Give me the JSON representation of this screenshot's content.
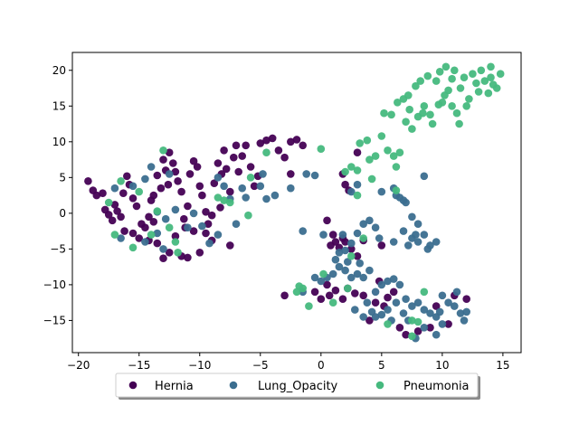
{
  "chart_data": {
    "type": "scatter",
    "title": "",
    "xlabel": "",
    "ylabel": "",
    "xlim": [
      -20.5,
      16.5
    ],
    "ylim": [
      -19.5,
      22.5
    ],
    "xticks": [
      -20,
      -15,
      -10,
      -5,
      0,
      5,
      10,
      15
    ],
    "yticks": [
      -15,
      -10,
      -5,
      0,
      5,
      10,
      15,
      20
    ],
    "grid": false,
    "legend_placement": "below plot, center",
    "series": [
      {
        "name": "Hernia",
        "color": "#440154",
        "points": [
          [
            -19.2,
            4.5
          ],
          [
            -18.8,
            3.2
          ],
          [
            -18.5,
            2.5
          ],
          [
            -18.0,
            2.8
          ],
          [
            -17.8,
            0.5
          ],
          [
            -17.5,
            -0.2
          ],
          [
            -17.0,
            1.2
          ],
          [
            -16.8,
            0.3
          ],
          [
            -16.5,
            -0.5
          ],
          [
            -16.3,
            2.8
          ],
          [
            -16.0,
            5.2
          ],
          [
            -15.8,
            4.0
          ],
          [
            -15.5,
            2.1
          ],
          [
            -15.2,
            1.0
          ],
          [
            -15.0,
            -3.5
          ],
          [
            -14.5,
            -2.0
          ],
          [
            -14.2,
            -0.5
          ],
          [
            -14.0,
            1.8
          ],
          [
            -13.8,
            -1.2
          ],
          [
            -13.5,
            5.3
          ],
          [
            -13.2,
            3.5
          ],
          [
            -13.0,
            7.5
          ],
          [
            -12.8,
            6.0
          ],
          [
            -12.5,
            8.5
          ],
          [
            -12.2,
            7.0
          ],
          [
            -12.0,
            5.8
          ],
          [
            -11.8,
            4.5
          ],
          [
            -11.5,
            3.0
          ],
          [
            -11.3,
            -0.8
          ],
          [
            -11.0,
            1.0
          ],
          [
            -10.8,
            5.5
          ],
          [
            -10.5,
            7.3
          ],
          [
            -10.2,
            6.5
          ],
          [
            -10.0,
            3.8
          ],
          [
            -9.8,
            2.5
          ],
          [
            -9.5,
            0.2
          ],
          [
            -9.3,
            -1.5
          ],
          [
            -9.0,
            -3.8
          ],
          [
            -8.8,
            4.2
          ],
          [
            -8.5,
            7.0
          ],
          [
            -8.2,
            5.5
          ],
          [
            -8.0,
            8.8
          ],
          [
            -7.8,
            6.2
          ],
          [
            -7.5,
            3.0
          ],
          [
            -7.2,
            7.8
          ],
          [
            -7.0,
            9.5
          ],
          [
            -6.8,
            5.8
          ],
          [
            -6.5,
            8.0
          ],
          [
            -6.2,
            9.5
          ],
          [
            -5.8,
            6.5
          ],
          [
            -5.5,
            3.8
          ],
          [
            -5.2,
            5.2
          ],
          [
            -5.0,
            9.8
          ],
          [
            -4.5,
            10.2
          ],
          [
            -4.0,
            10.5
          ],
          [
            -3.5,
            8.8
          ],
          [
            -3.0,
            7.8
          ],
          [
            -2.5,
            10.0
          ],
          [
            -2.0,
            10.3
          ],
          [
            -1.5,
            9.5
          ],
          [
            -15.5,
            -2.8
          ],
          [
            -14.8,
            -1.5
          ],
          [
            -14.2,
            -3.8
          ],
          [
            -13.5,
            -4.2
          ],
          [
            -13.0,
            -6.3
          ],
          [
            -12.5,
            -5.5
          ],
          [
            -12.0,
            -3.2
          ],
          [
            -11.5,
            -6.0
          ],
          [
            -11.0,
            -6.2
          ],
          [
            -10.5,
            -2.5
          ],
          [
            -10.0,
            -5.5
          ],
          [
            -9.5,
            -2.8
          ],
          [
            -7.5,
            -4.5
          ],
          [
            -17.2,
            -1.0
          ],
          [
            -16.2,
            -2.5
          ],
          [
            -12.6,
            4.0
          ],
          [
            -13.8,
            2.5
          ],
          [
            -11.2,
            -2.0
          ],
          [
            -9.0,
            -0.3
          ],
          [
            -8.3,
            0.8
          ],
          [
            -3.0,
            -11.5
          ],
          [
            -2.5,
            5.5
          ],
          [
            0.5,
            -1.0
          ],
          [
            0.8,
            -4.5
          ],
          [
            1.0,
            -3.0
          ],
          [
            1.2,
            -4.0
          ],
          [
            1.5,
            -4.8
          ],
          [
            1.8,
            -3.5
          ],
          [
            2.0,
            -4.0
          ],
          [
            2.5,
            -5.0
          ],
          [
            3.0,
            8.5
          ],
          [
            3.5,
            -3.8
          ],
          [
            2.0,
            4.0
          ],
          [
            2.3,
            3.2
          ],
          [
            1.8,
            5.5
          ],
          [
            0.5,
            -10.0
          ],
          [
            0.7,
            -11.5
          ],
          [
            1.2,
            -10.8
          ],
          [
            1.8,
            -12.0
          ],
          [
            2.2,
            -10.5
          ],
          [
            2.8,
            -11.2
          ],
          [
            3.5,
            -11.5
          ],
          [
            4.5,
            -12.5
          ],
          [
            5.5,
            -11.8
          ],
          [
            6.5,
            -16.0
          ],
          [
            7.0,
            -17.0
          ],
          [
            8.0,
            -16.5
          ],
          [
            9.0,
            -16.0
          ],
          [
            10.5,
            -15.5
          ],
          [
            11.0,
            -11.5
          ],
          [
            0.0,
            -12.0
          ],
          [
            -0.5,
            -11.0
          ],
          [
            6.0,
            -11.0
          ],
          [
            5.2,
            -13.0
          ],
          [
            4.8,
            -9.5
          ],
          [
            9.5,
            -13.0
          ],
          [
            12.0,
            -12.0
          ],
          [
            5.0,
            -4.5
          ],
          [
            3.0,
            -6.0
          ],
          [
            4.0,
            -15.0
          ]
        ]
      },
      {
        "name": "Lung_Opacity",
        "color": "#3b6e8f",
        "points": [
          [
            -17.0,
            3.5
          ],
          [
            -15.5,
            3.8
          ],
          [
            -14.5,
            4.8
          ],
          [
            -14.0,
            6.5
          ],
          [
            -13.5,
            0.2
          ],
          [
            -12.5,
            5.5
          ],
          [
            -12.8,
            -0.8
          ],
          [
            -12.0,
            0.5
          ],
          [
            -11.0,
            -2.0
          ],
          [
            -10.5,
            0.0
          ],
          [
            -9.8,
            -1.8
          ],
          [
            -9.2,
            -4.2
          ],
          [
            -8.5,
            5.0
          ],
          [
            -8.0,
            3.8
          ],
          [
            -7.5,
            2.0
          ],
          [
            -7.0,
            -1.5
          ],
          [
            -6.5,
            3.5
          ],
          [
            -6.2,
            2.2
          ],
          [
            -5.0,
            3.8
          ],
          [
            -4.8,
            5.5
          ],
          [
            -13.0,
            -5.0
          ],
          [
            -14.5,
            -4.0
          ],
          [
            -16.5,
            -3.5
          ],
          [
            -13.5,
            -2.8
          ],
          [
            -8.5,
            -3.0
          ],
          [
            -1.2,
            5.5
          ],
          [
            -0.5,
            5.3
          ],
          [
            -1.5,
            -2.5
          ],
          [
            0.2,
            -3.0
          ],
          [
            1.5,
            -5.5
          ],
          [
            2.0,
            -5.2
          ],
          [
            2.5,
            -4.2
          ],
          [
            3.0,
            -2.8
          ],
          [
            3.5,
            -1.5
          ],
          [
            4.0,
            -1.0
          ],
          [
            4.5,
            -2.0
          ],
          [
            5.0,
            3.0
          ],
          [
            6.0,
            3.5
          ],
          [
            6.2,
            2.5
          ],
          [
            6.5,
            2.2
          ],
          [
            6.8,
            1.8
          ],
          [
            7.0,
            1.5
          ],
          [
            7.5,
            -0.5
          ],
          [
            8.0,
            -1.5
          ],
          [
            7.5,
            -3.5
          ],
          [
            8.0,
            -4.0
          ],
          [
            8.5,
            -3.0
          ],
          [
            9.0,
            -4.5
          ],
          [
            6.0,
            -4.0
          ],
          [
            7.8,
            -3.0
          ],
          [
            8.5,
            5.2
          ],
          [
            3.0,
            4.0
          ],
          [
            2.5,
            3.0
          ],
          [
            0.0,
            -9.5
          ],
          [
            0.5,
            -9.0
          ],
          [
            1.0,
            -8.5
          ],
          [
            1.5,
            -7.5
          ],
          [
            2.0,
            -8.0
          ],
          [
            2.5,
            -9.0
          ],
          [
            3.0,
            -8.5
          ],
          [
            3.5,
            -9.0
          ],
          [
            4.0,
            -8.0
          ],
          [
            4.5,
            -11.0
          ],
          [
            5.0,
            -10.0
          ],
          [
            5.5,
            -9.5
          ],
          [
            6.0,
            -9.2
          ],
          [
            6.5,
            -10.0
          ],
          [
            7.0,
            -12.0
          ],
          [
            7.5,
            -13.0
          ],
          [
            8.0,
            -12.5
          ],
          [
            8.5,
            -13.5
          ],
          [
            9.0,
            -14.0
          ],
          [
            9.5,
            -14.5
          ],
          [
            10.0,
            -11.5
          ],
          [
            10.5,
            -12.5
          ],
          [
            11.0,
            -13.0
          ],
          [
            11.5,
            -14.0
          ],
          [
            11.8,
            -15.0
          ],
          [
            10.0,
            -15.5
          ],
          [
            9.5,
            -17.0
          ],
          [
            8.5,
            -16.0
          ],
          [
            7.8,
            -17.5
          ],
          [
            6.8,
            -14.0
          ],
          [
            5.5,
            -13.5
          ],
          [
            5.0,
            -14.2
          ],
          [
            4.2,
            -13.8
          ],
          [
            3.5,
            -14.5
          ],
          [
            2.8,
            -13.5
          ],
          [
            3.8,
            -12.5
          ],
          [
            4.5,
            -14.5
          ],
          [
            6.2,
            -12.5
          ],
          [
            7.2,
            -15.0
          ],
          [
            1.2,
            -6.5
          ],
          [
            -1.5,
            -11.0
          ],
          [
            -0.5,
            -9.0
          ],
          [
            11.2,
            -11.0
          ],
          [
            12.0,
            -13.8
          ],
          [
            9.8,
            -13.8
          ],
          [
            3.2,
            -7.0
          ],
          [
            5.8,
            -15.0
          ],
          [
            1.8,
            -3.0
          ],
          [
            4.8,
            -3.5
          ],
          [
            6.8,
            -2.5
          ],
          [
            8.8,
            -5.0
          ],
          [
            -3.8,
            2.5
          ],
          [
            -2.5,
            3.5
          ],
          [
            -4.5,
            2.0
          ],
          [
            7.2,
            -4.5
          ],
          [
            9.5,
            -4.0
          ],
          [
            2.2,
            -6.8
          ]
        ]
      },
      {
        "name": "Pneumonia",
        "color": "#46b97e",
        "points": [
          [
            -17.5,
            1.5
          ],
          [
            -16.5,
            4.5
          ],
          [
            -17.0,
            -3.0
          ],
          [
            -15.5,
            -4.8
          ],
          [
            -15.0,
            3.0
          ],
          [
            -14.0,
            -3.0
          ],
          [
            -13.5,
            0.3
          ],
          [
            -13.0,
            8.8
          ],
          [
            -12.5,
            -2.0
          ],
          [
            -12.0,
            -4.0
          ],
          [
            -11.8,
            -5.5
          ],
          [
            -8.5,
            2.2
          ],
          [
            -8.0,
            1.8
          ],
          [
            -7.5,
            1.5
          ],
          [
            -6.0,
            -0.3
          ],
          [
            -5.8,
            5.0
          ],
          [
            -4.5,
            8.5
          ],
          [
            0.0,
            9.0
          ],
          [
            2.0,
            5.8
          ],
          [
            2.5,
            6.5
          ],
          [
            3.0,
            6.0
          ],
          [
            3.2,
            9.8
          ],
          [
            3.8,
            10.2
          ],
          [
            4.0,
            7.5
          ],
          [
            4.2,
            4.8
          ],
          [
            4.5,
            8.0
          ],
          [
            5.0,
            10.8
          ],
          [
            5.2,
            14.0
          ],
          [
            5.5,
            8.8
          ],
          [
            5.8,
            13.8
          ],
          [
            6.0,
            8.0
          ],
          [
            6.2,
            6.5
          ],
          [
            6.5,
            8.5
          ],
          [
            6.8,
            16.0
          ],
          [
            7.0,
            12.8
          ],
          [
            7.2,
            16.5
          ],
          [
            7.5,
            11.8
          ],
          [
            7.8,
            17.8
          ],
          [
            8.0,
            13.5
          ],
          [
            8.2,
            18.5
          ],
          [
            8.5,
            15.0
          ],
          [
            8.8,
            19.2
          ],
          [
            9.0,
            13.8
          ],
          [
            9.2,
            12.5
          ],
          [
            9.5,
            18.5
          ],
          [
            9.8,
            19.8
          ],
          [
            10.0,
            15.5
          ],
          [
            10.2,
            16.5
          ],
          [
            10.5,
            17.2
          ],
          [
            10.8,
            18.8
          ],
          [
            11.0,
            20.0
          ],
          [
            11.2,
            14.0
          ],
          [
            11.5,
            17.5
          ],
          [
            11.8,
            19.0
          ],
          [
            12.0,
            15.0
          ],
          [
            12.5,
            19.5
          ],
          [
            12.8,
            18.2
          ],
          [
            13.0,
            17.0
          ],
          [
            13.2,
            20.0
          ],
          [
            13.5,
            18.5
          ],
          [
            13.8,
            16.8
          ],
          [
            14.0,
            19.0
          ],
          [
            14.2,
            18.0
          ],
          [
            14.5,
            17.5
          ],
          [
            14.8,
            19.5
          ],
          [
            14.0,
            20.5
          ],
          [
            10.3,
            20.5
          ],
          [
            9.7,
            15.2
          ],
          [
            8.4,
            14.0
          ],
          [
            7.3,
            14.5
          ],
          [
            6.3,
            15.5
          ],
          [
            11.4,
            12.5
          ],
          [
            12.2,
            16.0
          ],
          [
            10.8,
            15.0
          ],
          [
            3.5,
            -3.5
          ],
          [
            2.5,
            -6.0
          ],
          [
            -1.5,
            -10.5
          ],
          [
            -1.8,
            -10.2
          ],
          [
            0.2,
            -8.5
          ],
          [
            2.2,
            -10.5
          ],
          [
            7.5,
            -15.0
          ],
          [
            8.0,
            -15.2
          ],
          [
            8.5,
            -11.0
          ],
          [
            7.5,
            -17.2
          ],
          [
            5.5,
            -15.5
          ],
          [
            -2.0,
            -11.0
          ],
          [
            -1.0,
            -13.0
          ],
          [
            1.0,
            -12.5
          ],
          [
            6.2,
            3.2
          ],
          [
            3.0,
            2.5
          ]
        ]
      }
    ]
  }
}
